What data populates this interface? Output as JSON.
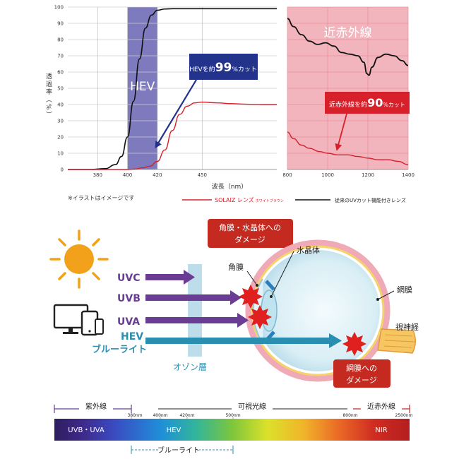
{
  "chart_data": [
    {
      "type": "line",
      "panel": "uv-visible",
      "xlabel": "波長（nm）",
      "ylabel": "透過率（%）",
      "xlim": [
        360,
        500
      ],
      "ylim": [
        0,
        100
      ],
      "xticks": [
        380,
        400,
        420,
        450
      ],
      "yticks": [
        0,
        10,
        20,
        30,
        40,
        50,
        60,
        70,
        80,
        90,
        100
      ],
      "band": {
        "label": "HEV",
        "from": 400,
        "to": 420
      },
      "annotation": {
        "prefix": "HEVを約",
        "value": "99",
        "suffix": "%カット"
      },
      "series": [
        {
          "name": "従来のUVカット機能付きレンズ",
          "color": "#111111",
          "x": [
            360,
            375,
            385,
            392,
            396,
            400,
            404,
            408,
            412,
            416,
            420,
            425,
            430,
            440,
            450,
            470,
            500
          ],
          "y": [
            0,
            0,
            0.5,
            3,
            8,
            20,
            42,
            68,
            87,
            95,
            98,
            98.8,
            99,
            99,
            99,
            99,
            99
          ]
        },
        {
          "name": "SOLAIZ レンズ",
          "color": "#d8202a",
          "x": [
            360,
            400,
            405,
            410,
            415,
            420,
            425,
            430,
            435,
            440,
            445,
            450,
            460,
            470,
            480,
            490,
            500
          ],
          "y": [
            0,
            0,
            0.3,
            1,
            2,
            5,
            12,
            24,
            34,
            39,
            41,
            41.5,
            41,
            40.5,
            40.2,
            40,
            40
          ]
        }
      ]
    },
    {
      "type": "line",
      "panel": "near-infrared",
      "xlim": [
        800,
        1400
      ],
      "ylim": [
        0,
        100
      ],
      "xticks": [
        800,
        1000,
        1200,
        1400
      ],
      "band": {
        "label": "近赤外線",
        "from": 800,
        "to": 1400
      },
      "annotation": {
        "prefix": "近赤外線を約",
        "value": "90",
        "suffix": "%カット"
      },
      "series": [
        {
          "name": "従来のUVカット機能付きレンズ",
          "color": "#111111",
          "x": [
            800,
            830,
            870,
            910,
            950,
            990,
            1030,
            1070,
            1110,
            1150,
            1180,
            1195,
            1205,
            1220,
            1250,
            1290,
            1330,
            1370,
            1400
          ],
          "y": [
            93,
            88,
            83,
            79,
            77,
            78,
            76,
            72,
            71,
            70,
            66,
            59,
            58,
            63,
            69,
            71,
            70,
            67,
            64
          ]
        },
        {
          "name": "SOLAIZ レンズ",
          "color": "#d8202a",
          "x": [
            800,
            830,
            870,
            910,
            960,
            1000,
            1050,
            1100,
            1150,
            1200,
            1250,
            1300,
            1350,
            1400
          ],
          "y": [
            23,
            19,
            15,
            13,
            11,
            10,
            9,
            9,
            8,
            7,
            6,
            6,
            5,
            3
          ]
        }
      ]
    }
  ],
  "footnote": "※イラストはイメージです",
  "legend": {
    "solaiz_main": "SOLAIZ レンズ",
    "solaiz_sub": "ホワイトブラウン",
    "conventional": "従来のUVカット機能付きレンズ"
  },
  "diagram": {
    "damage_top": [
      "角膜・水晶体への",
      "ダメージ"
    ],
    "damage_bottom": [
      "網膜への",
      "ダメージ"
    ],
    "labels": {
      "lens": "水晶体",
      "cornea": "角膜",
      "retina": "網膜",
      "optic_nerve": "視神経",
      "ozone": "オゾン層"
    },
    "rays": [
      "UVC",
      "UVB",
      "UVA",
      "HEV"
    ],
    "bluelight": "ブルーライト",
    "colors": {
      "ray_purple": "#6a3c94",
      "ray_teal": "#2a8eb0",
      "damage_red": "#c52a20"
    }
  },
  "spectrum": {
    "uv_label": "紫外線",
    "visible_label": "可視光線",
    "nir_label": "近赤外線",
    "ticks": [
      "380nm",
      "400nm",
      "420nm",
      "500nm",
      "800nm",
      "2500nm"
    ],
    "segments": {
      "uv": "UVB・UVA",
      "hev": "HEV",
      "nir": "NIR"
    },
    "bluelight": "ブルーライト"
  }
}
